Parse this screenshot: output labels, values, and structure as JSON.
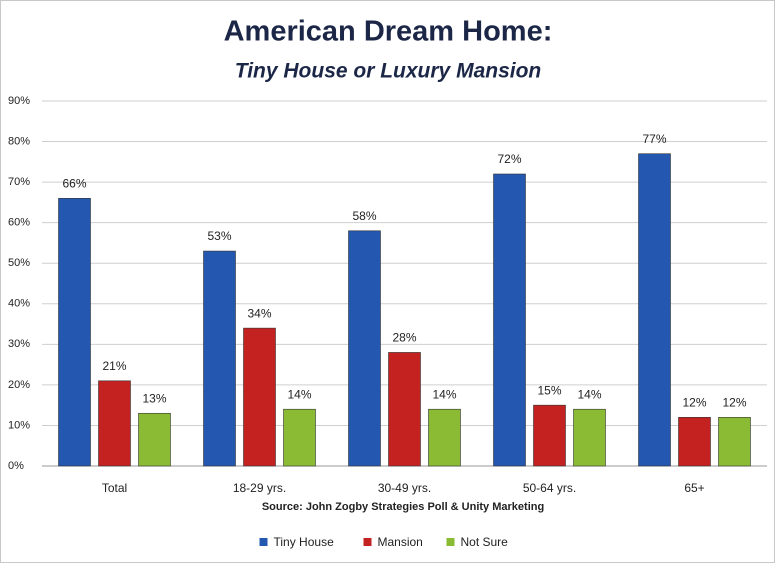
{
  "chart_data": {
    "type": "bar",
    "title": "American Dream Home:",
    "subtitle": "Tiny House or Luxury Mansion",
    "source": "Source: John Zogby Strategies Poll & Unity Marketing",
    "categories": [
      "Total",
      "18-29 yrs.",
      "30-49 yrs.",
      "50-64 yrs.",
      "65+"
    ],
    "series": [
      {
        "name": "Tiny House",
        "color": "#2457b0",
        "values": [
          66,
          53,
          58,
          72,
          77
        ],
        "value_labels": [
          "66%",
          "53%",
          "58%",
          "72%",
          "77%"
        ]
      },
      {
        "name": "Mansion",
        "color": "#c42121",
        "values": [
          21,
          34,
          28,
          15,
          12
        ],
        "value_labels": [
          "21%",
          "34%",
          "28%",
          "15%",
          "12%"
        ]
      },
      {
        "name": "Not Sure",
        "color": "#8bbb34",
        "values": [
          13,
          14,
          14,
          14,
          12
        ],
        "value_labels": [
          "13%",
          "14%",
          "14%",
          "14%",
          "12%"
        ]
      }
    ],
    "ylim": [
      0,
      90
    ],
    "yticks": [
      {
        "value": 0,
        "label": "0%"
      },
      {
        "value": 10,
        "label": "10%"
      },
      {
        "value": 20,
        "label": "20%"
      },
      {
        "value": 30,
        "label": "30%"
      },
      {
        "value": 40,
        "label": "40%"
      },
      {
        "value": 50,
        "label": "50%"
      },
      {
        "value": 60,
        "label": "60%"
      },
      {
        "value": 70,
        "label": "70%"
      },
      {
        "value": 80,
        "label": "80%"
      },
      {
        "value": 90,
        "label": "90%"
      }
    ],
    "grid": true,
    "legend": "bottom"
  }
}
